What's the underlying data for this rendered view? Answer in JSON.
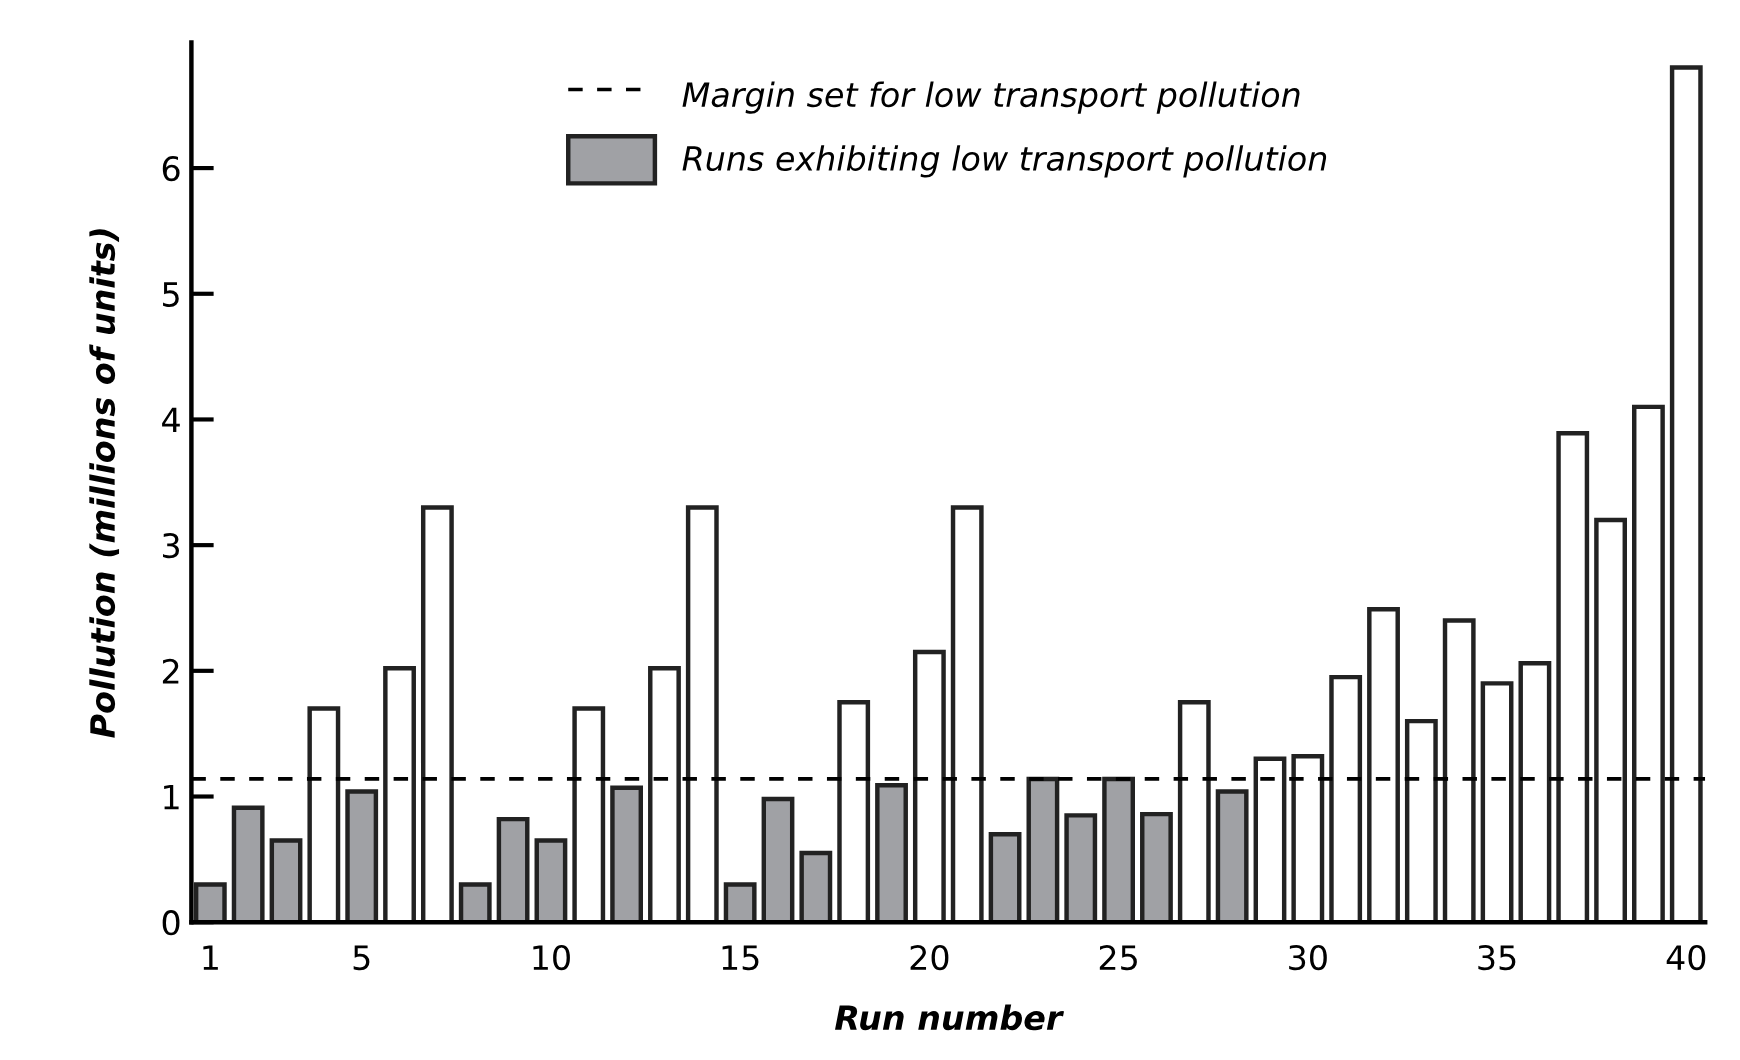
{
  "chart_data": {
    "type": "bar",
    "xlabel": "Run number",
    "ylabel": "Pollution (millions of units)",
    "x": [
      1,
      2,
      3,
      4,
      5,
      6,
      7,
      8,
      9,
      10,
      11,
      12,
      13,
      14,
      15,
      16,
      17,
      18,
      19,
      20,
      21,
      22,
      23,
      24,
      25,
      26,
      27,
      28,
      29,
      30,
      31,
      32,
      33,
      34,
      35,
      36,
      37,
      38,
      39,
      40
    ],
    "series": [
      {
        "name": "Runs exhibiting low transport pollution",
        "color": "#a0a1a5",
        "values": [
          0.3,
          0.91,
          0.65,
          null,
          1.04,
          null,
          null,
          0.3,
          0.82,
          0.65,
          null,
          1.07,
          null,
          null,
          0.3,
          0.98,
          0.55,
          null,
          1.09,
          null,
          null,
          0.7,
          1.14,
          0.85,
          1.14,
          0.86,
          null,
          1.04,
          null,
          null,
          null,
          null,
          null,
          null,
          null,
          null,
          null,
          null,
          null,
          null
        ]
      },
      {
        "color": "#ffffff",
        "values": [
          null,
          null,
          null,
          1.7,
          null,
          2.02,
          3.3,
          null,
          null,
          null,
          1.7,
          null,
          2.02,
          3.3,
          null,
          null,
          null,
          1.75,
          null,
          2.15,
          3.3,
          null,
          null,
          null,
          null,
          null,
          1.75,
          null,
          1.3,
          1.32,
          1.95,
          2.49,
          1.6,
          2.4,
          1.9,
          2.06,
          3.89,
          3.2,
          4.1,
          6.8
        ]
      }
    ],
    "ref_lines": [
      {
        "axis": "y",
        "value": 1.14,
        "label": "Margin set for low transport pollution",
        "line_style": "dashed",
        "color": "#000000"
      }
    ],
    "xlim": [
      0.5,
      40.5
    ],
    "xticks": [
      1,
      5,
      10,
      15,
      20,
      25,
      30,
      35,
      40
    ],
    "ylim": [
      0,
      7.0
    ],
    "yticks": [
      0,
      1,
      2,
      3,
      4,
      5,
      6
    ],
    "grid": false,
    "legend": "top"
  }
}
